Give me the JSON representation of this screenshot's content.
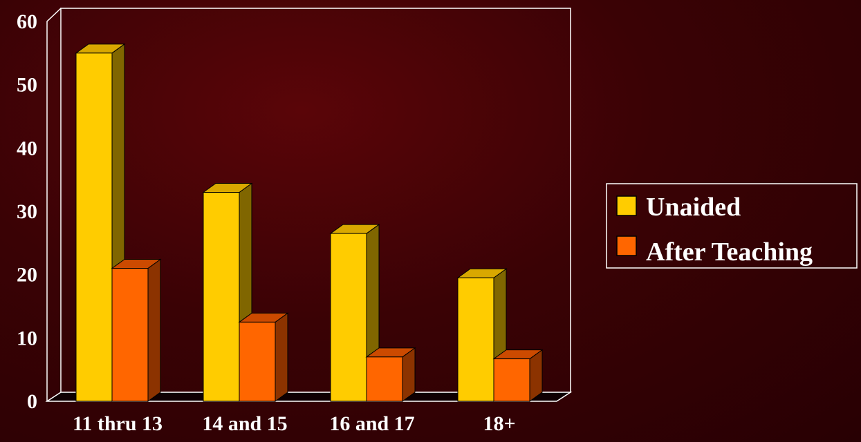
{
  "chart_data": {
    "type": "bar",
    "categories": [
      "11 thru 13",
      "14 and 15",
      "16 and 17",
      "18+"
    ],
    "series": [
      {
        "name": "Unaided",
        "values": [
          55,
          33,
          26.5,
          19.5
        ]
      },
      {
        "name": "After Teaching",
        "values": [
          21,
          12.5,
          7,
          6.7
        ]
      }
    ],
    "ylim": [
      0,
      60
    ],
    "yticks": [
      "0",
      "10",
      "20",
      "30",
      "40",
      "50",
      "60"
    ],
    "grid": false,
    "legend_position": "right",
    "colors": {
      "front": [
        "#ffcc00",
        "#ff6600"
      ],
      "top": [
        "#d9a800",
        "#cc4a00"
      ],
      "side": [
        "#806600",
        "#8c3300"
      ],
      "frame": "#ffffff",
      "label": "#ffffff"
    }
  }
}
